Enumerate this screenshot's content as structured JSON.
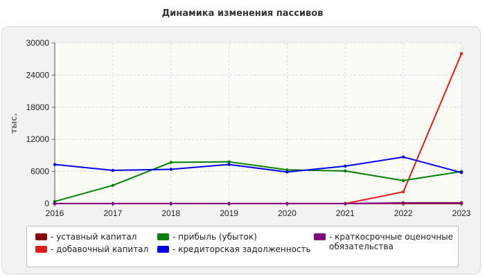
{
  "chart_data": {
    "type": "line",
    "title": "Динамика изменения пассивов",
    "ylabel": "тыс.",
    "xlabel": "",
    "categories": [
      "2016",
      "2017",
      "2018",
      "2019",
      "2020",
      "2021",
      "2022",
      "2023"
    ],
    "ylim": [
      0,
      30000
    ],
    "yticks": [
      "0",
      "6000",
      "12000",
      "18000",
      "24000",
      "30000"
    ],
    "grid": true,
    "legend_position": "bottom",
    "series": [
      {
        "name": "- уставный капитал",
        "color": "#8b0000",
        "values": [
          10,
          10,
          10,
          10,
          10,
          10,
          10,
          10
        ]
      },
      {
        "name": "- добавочный капитал",
        "color": "#e31a1c",
        "values": [
          0,
          0,
          0,
          0,
          0,
          0,
          2200,
          28000
        ]
      },
      {
        "name": "- прибыль (убыток)",
        "color": "#008000",
        "values": [
          400,
          3400,
          7700,
          7800,
          6300,
          6100,
          4300,
          6000
        ]
      },
      {
        "name": "- кредиторская задолженность",
        "color": "#0000ee",
        "values": [
          7300,
          6200,
          6400,
          7300,
          5900,
          7000,
          8700,
          5800
        ]
      },
      {
        "name": "- краткосрочные оценочные обязательства",
        "color": "#800080",
        "values": [
          0,
          0,
          0,
          0,
          0,
          0,
          150,
          150
        ]
      }
    ]
  }
}
